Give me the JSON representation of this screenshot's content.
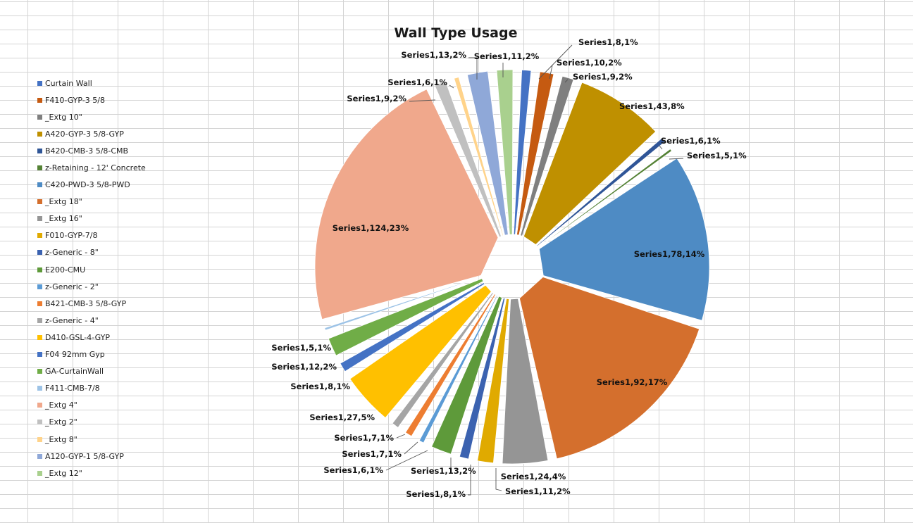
{
  "chart_data": {
    "type": "pie",
    "title": "Wall Type Usage",
    "exploded": true,
    "legend_position": "left",
    "series": [
      {
        "name": "Series1",
        "slices": [
          {
            "category": "Curtain Wall",
            "value": 8,
            "percent": "1%",
            "label": "Series1,8,1%",
            "color": "#4472c4"
          },
          {
            "category": "F410-GYP-3 5/8",
            "value": 10,
            "percent": "2%",
            "label": "Series1,10,2%",
            "color": "#c55a11"
          },
          {
            "category": "_Extg 10\"",
            "value": 9,
            "percent": "2%",
            "label": "Series1,9,2%",
            "color": "#7f7f7f"
          },
          {
            "category": "A420-GYP-3 5/8-GYP",
            "value": 43,
            "percent": "8%",
            "label": "Series1,43,8%",
            "color": "#bf9000"
          },
          {
            "category": "B420-CMB-3 5/8-CMB",
            "value": 6,
            "percent": "1%",
            "label": "Series1,6,1%",
            "color": "#2f5597"
          },
          {
            "category": "z-Retaining - 12' Concrete",
            "value": 5,
            "percent": "1%",
            "label": "Series1,5,1%",
            "color": "#548235"
          },
          {
            "category": "C420-PWD-3 5/8-PWD",
            "value": 78,
            "percent": "14%",
            "label": "Series1,78,14%",
            "color": "#4e8bc4"
          },
          {
            "category": "_Extg 18\"",
            "value": 92,
            "percent": "17%",
            "label": "Series1,92,17%",
            "color": "#d46f2d"
          },
          {
            "category": "_Extg 16\"",
            "value": 24,
            "percent": "4%",
            "label": "Series1,24,4%",
            "color": "#959595"
          },
          {
            "category": "F010-GYP-7/8",
            "value": 11,
            "percent": "2%",
            "label": "Series1,11,2%",
            "color": "#e0aa00"
          },
          {
            "category": "z-Generic - 8\"",
            "value": 8,
            "percent": "1%",
            "label": "Series1,8,1%",
            "color": "#3b62b0"
          },
          {
            "category": "E200-CMU",
            "value": 13,
            "percent": "2%",
            "label": "Series1,13,2%",
            "color": "#5e9a3a"
          },
          {
            "category": "z-Generic - 2\"",
            "value": 6,
            "percent": "1%",
            "label": "Series1,6,1%",
            "color": "#5b9bd5"
          },
          {
            "category": "B421-CMB-3 5/8-GYP",
            "value": 7,
            "percent": "1%",
            "label": "Series1,7,1%",
            "color": "#ed7d31"
          },
          {
            "category": "z-Generic - 4\"",
            "value": 7,
            "percent": "1%",
            "label": "Series1,7,1%",
            "color": "#a5a5a5"
          },
          {
            "category": "D410-GSL-4-GYP",
            "value": 27,
            "percent": "5%",
            "label": "Series1,27,5%",
            "color": "#ffc000"
          },
          {
            "category": "F04 92mm Gyp",
            "value": 8,
            "percent": "1%",
            "label": "Series1,8,1%",
            "color": "#4472c4"
          },
          {
            "category": "GA-CurtainWall",
            "value": 12,
            "percent": "2%",
            "label": "Series1,12,2%",
            "color": "#70ad47"
          },
          {
            "category": "F411-CMB-7/8",
            "value": 5,
            "percent": "1%",
            "label": "Series1,5,1%",
            "color": "#9dc3e6"
          },
          {
            "category": "_Extg 4\"",
            "value": 124,
            "percent": "23%",
            "label": "Series1,124,23%",
            "color": "#f0a88c"
          },
          {
            "category": "_Extg 2\"",
            "value": 9,
            "percent": "2%",
            "label": "Series1,9,2%",
            "color": "#c0c0c0"
          },
          {
            "category": "_Extg 8\"",
            "value": 6,
            "percent": "1%",
            "label": "Series1,6,1%",
            "color": "#ffd38a"
          },
          {
            "category": "A120-GYP-1 5/8-GYP",
            "value": 13,
            "percent": "2%",
            "label": "Series1,13,2%",
            "color": "#8fa8d8"
          },
          {
            "category": "_Extg 12\"",
            "value": 11,
            "percent": "2%",
            "label": "Series1,11,2%",
            "color": "#a9d08e"
          }
        ]
      }
    ]
  }
}
